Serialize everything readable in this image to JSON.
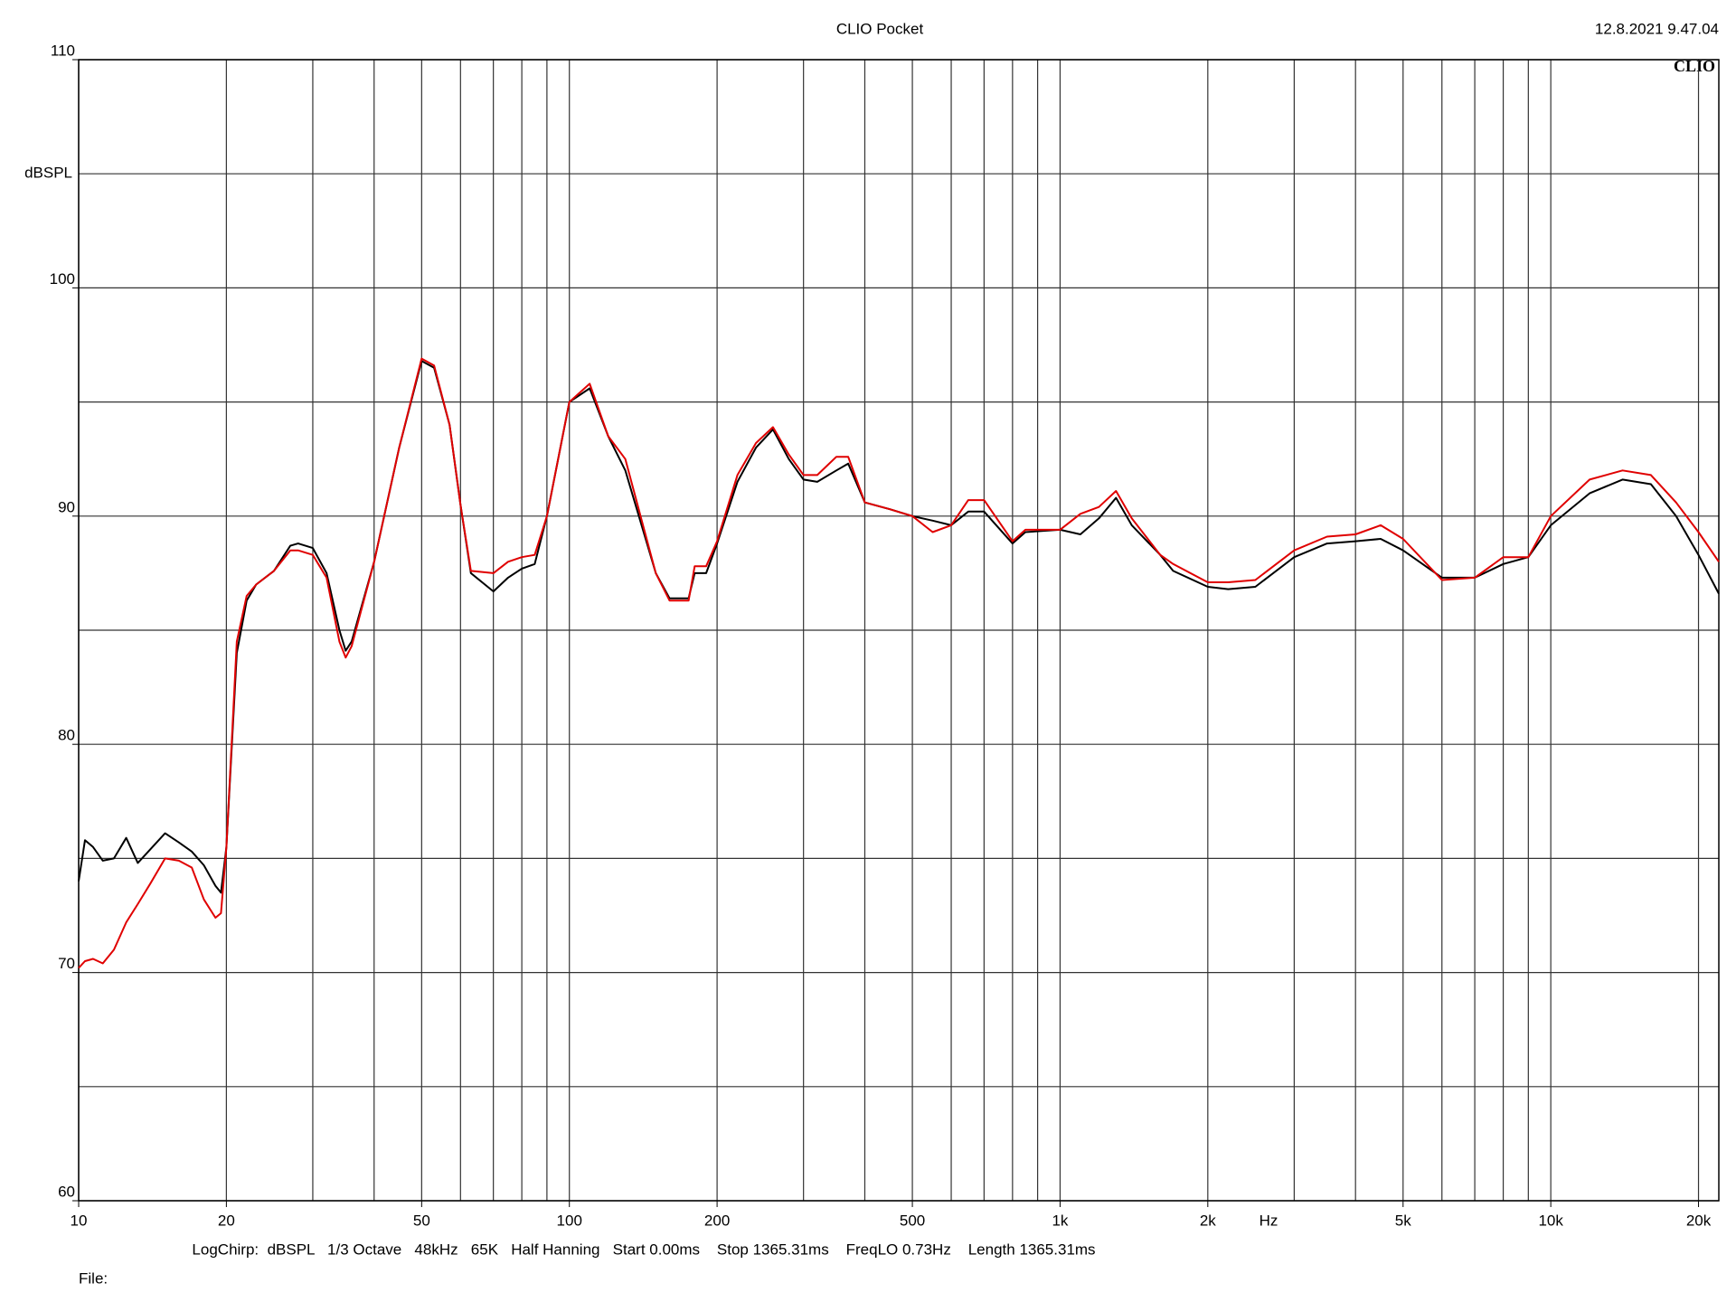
{
  "chart_data": {
    "type": "line",
    "title": "CLIO Pocket",
    "timestamp": "12.8.2021 9.47.04",
    "logo": "CLIO",
    "ylabel": "dBSPL",
    "xlabel": "Hz",
    "footer": "LogChirp:  dBSPL   1/3 Octave   48kHz   65K   Half Hanning   Start 0.00ms    Stop 1365.31ms    FreqLO 0.73Hz    Length 1365.31ms",
    "file_label": "File:",
    "x": [
      10,
      10.3,
      10.7,
      11.2,
      11.8,
      12.5,
      13.2,
      14,
      15,
      16,
      17,
      18,
      19,
      19.5,
      20,
      21,
      22,
      23,
      25,
      27,
      28,
      30,
      32,
      34,
      35,
      36,
      40,
      45,
      50,
      53,
      57,
      60,
      63,
      70,
      75,
      80,
      85,
      90,
      100,
      110,
      120,
      130,
      150,
      160,
      175,
      180,
      190,
      200,
      220,
      240,
      260,
      280,
      300,
      320,
      350,
      370,
      400,
      450,
      500,
      550,
      600,
      650,
      700,
      800,
      850,
      1000,
      1100,
      1200,
      1300,
      1400,
      1600,
      1700,
      2000,
      2200,
      2500,
      3000,
      3500,
      4000,
      4500,
      5000,
      6000,
      7000,
      8000,
      9000,
      10000,
      12000,
      14000,
      16000,
      18000,
      20000,
      22000
    ],
    "series": [
      {
        "color": "#000000",
        "values": [
          74.0,
          75.8,
          75.5,
          74.9,
          75.0,
          75.9,
          74.8,
          75.4,
          76.1,
          75.7,
          75.3,
          74.7,
          73.8,
          73.5,
          75.5,
          84.0,
          86.3,
          87.0,
          87.6,
          88.7,
          88.8,
          88.6,
          87.5,
          85.0,
          84.1,
          84.5,
          88.0,
          93.0,
          96.8,
          96.5,
          94.0,
          90.5,
          87.5,
          86.7,
          87.3,
          87.7,
          87.9,
          90.0,
          95.0,
          95.6,
          93.5,
          92.0,
          87.5,
          86.4,
          86.4,
          87.5,
          87.5,
          88.8,
          91.5,
          93.0,
          93.8,
          92.5,
          91.6,
          91.5,
          92.0,
          92.3,
          90.6,
          90.3,
          90.0,
          89.8,
          89.6,
          90.2,
          90.2,
          88.8,
          89.3,
          89.4,
          89.2,
          89.9,
          90.8,
          89.6,
          88.3,
          87.6,
          86.9,
          86.8,
          86.9,
          88.2,
          88.8,
          88.9,
          89.0,
          88.5,
          87.3,
          87.3,
          87.9,
          88.2,
          89.6,
          91.0,
          91.6,
          91.4,
          90.0,
          88.3,
          86.6
        ]
      },
      {
        "color": "#e00000",
        "values": [
          70.2,
          70.5,
          70.6,
          70.4,
          71.0,
          72.2,
          73.0,
          73.9,
          75.0,
          74.9,
          74.6,
          73.2,
          72.4,
          72.6,
          75.5,
          84.5,
          86.5,
          87.0,
          87.6,
          88.5,
          88.5,
          88.3,
          87.3,
          84.5,
          83.8,
          84.3,
          88.0,
          93.0,
          96.9,
          96.6,
          94.0,
          90.5,
          87.6,
          87.5,
          88.0,
          88.2,
          88.3,
          90.0,
          95.0,
          95.8,
          93.5,
          92.5,
          87.5,
          86.3,
          86.3,
          87.8,
          87.8,
          88.9,
          91.8,
          93.2,
          93.9,
          92.7,
          91.8,
          91.8,
          92.6,
          92.6,
          90.6,
          90.3,
          90.0,
          89.3,
          89.6,
          90.7,
          90.7,
          88.9,
          89.4,
          89.4,
          90.1,
          90.4,
          91.1,
          89.9,
          88.3,
          87.9,
          87.1,
          87.1,
          87.2,
          88.5,
          89.1,
          89.2,
          89.6,
          89.0,
          87.2,
          87.3,
          88.2,
          88.2,
          90.0,
          91.6,
          92.0,
          91.8,
          90.6,
          89.3,
          88.0
        ]
      }
    ],
    "xscale": "log",
    "xlim": [
      10,
      22000
    ],
    "xticks": [
      10,
      20,
      50,
      100,
      200,
      500,
      {
        "value": 1000,
        "label": "1k"
      },
      {
        "value": 2000,
        "label": "2k"
      },
      {
        "value": 5000,
        "label": "5k"
      },
      {
        "value": 10000,
        "label": "10k"
      },
      {
        "value": 20000,
        "label": "20k"
      }
    ],
    "xminor": [
      30,
      40,
      60,
      70,
      80,
      90,
      300,
      400,
      600,
      700,
      800,
      900,
      3000,
      4000,
      6000,
      7000,
      8000,
      9000
    ],
    "ylim": [
      60,
      110
    ],
    "yticks": [
      60,
      70,
      80,
      90,
      100,
      110
    ],
    "yminor": [
      65,
      75,
      85,
      95,
      105
    ],
    "grid": true
  }
}
